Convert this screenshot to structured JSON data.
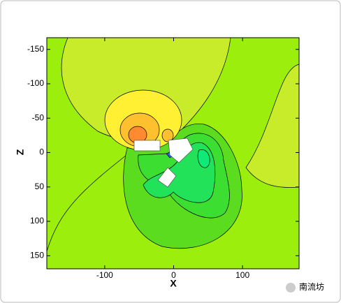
{
  "chart_data": {
    "type": "contour",
    "x_label": "X",
    "y_label": "Z",
    "xlim": [
      -184,
      182
    ],
    "xticks": [
      -100,
      0,
      100
    ],
    "ylim": [
      -167,
      169
    ],
    "yticks": [
      -150,
      -100,
      -50,
      0,
      50,
      100,
      150
    ],
    "y_reversed": true
  },
  "watermark": "南流坊"
}
